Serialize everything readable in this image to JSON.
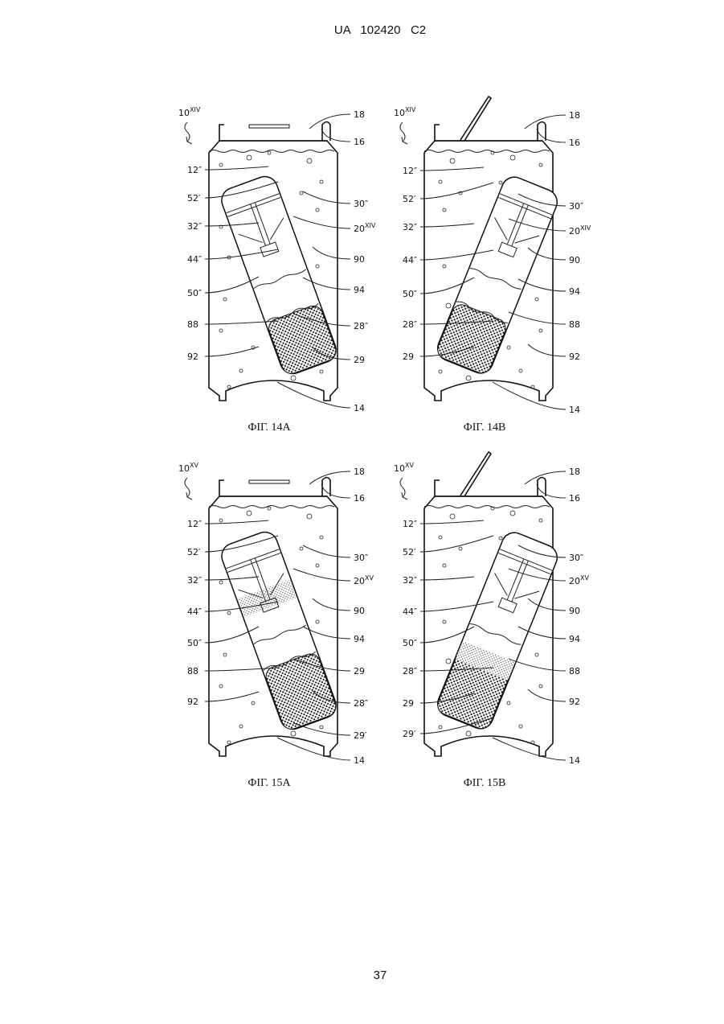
{
  "header": {
    "title": "UA   102420   C2"
  },
  "figures": [
    {
      "ref": {
        "text": "10",
        "sup": "XIV"
      },
      "caption": "ФІГ. 14А",
      "labels": [
        "18",
        "16",
        "12″",
        "52′",
        "30″",
        "32″",
        {
          "text": "20",
          "sup": "XIV"
        },
        "44″",
        "90",
        "50″",
        "94",
        "88",
        "28″",
        "92",
        "29",
        "14"
      ]
    },
    {
      "ref": {
        "text": "10",
        "sup": "XIV"
      },
      "caption": "ФІГ. 14В",
      "labels": [
        "18",
        "16",
        "12″",
        "52′",
        "30″",
        "32″",
        {
          "text": "20",
          "sup": "XIV"
        },
        "44″",
        "90",
        "50″",
        "94",
        "28″",
        "88",
        "29",
        "92",
        "14"
      ]
    },
    {
      "ref": {
        "text": "10",
        "sup": "XV"
      },
      "caption": "ФІГ. 15А",
      "labels": [
        "18",
        "16",
        "12″",
        "52′",
        "30″",
        "32″",
        {
          "text": "20",
          "sup": "XV"
        },
        "44″",
        "90",
        "50″",
        "94",
        "88",
        "29",
        "92",
        "28″",
        "29′",
        "14"
      ]
    },
    {
      "ref": {
        "text": "10",
        "sup": "XV"
      },
      "caption": "ФІГ. 15В",
      "labels": [
        "18",
        "16",
        "12″",
        "52′",
        "30″",
        "32″",
        {
          "text": "20",
          "sup": "XV"
        },
        "44″",
        "90",
        "50″",
        "94",
        "28″",
        "88",
        "29",
        "92",
        "29′",
        "14"
      ]
    }
  ],
  "footer": {
    "page_number": "37"
  }
}
